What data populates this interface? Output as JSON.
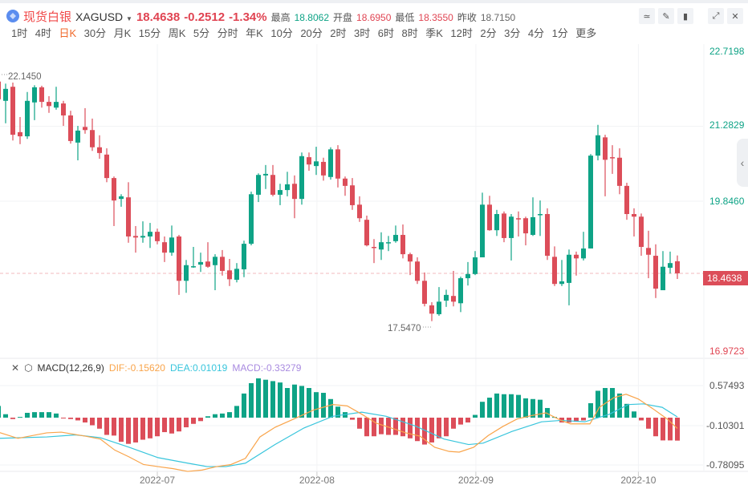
{
  "header": {
    "name": "现货白银",
    "symbol": "XAGUSD",
    "price": "18.4638",
    "change": "-0.2512",
    "change_pct": "-1.34%",
    "high_label": "最高",
    "high": "18.8062",
    "open_label": "开盘",
    "open": "18.6950",
    "low_label": "最低",
    "low": "18.3550",
    "prev_label": "昨收",
    "prev": "18.7150"
  },
  "periods": [
    "1时",
    "4时",
    "日K",
    "30分",
    "月K",
    "15分",
    "周K",
    "5分",
    "分时",
    "年K",
    "10分",
    "20分",
    "2时",
    "3时",
    "6时",
    "8时",
    "季K",
    "12时",
    "2分",
    "3分",
    "4分",
    "1分",
    "更多"
  ],
  "active_period": "日K",
  "colors": {
    "up": "#0ea386",
    "down": "#dc4d59",
    "dif": "#f9a44a",
    "dea": "#38c5dc",
    "macd": "#a98be0"
  },
  "price_axis": [
    "22.7198",
    "21.2829",
    "19.8460",
    "16.9723"
  ],
  "current_price_tag": "18.4638",
  "annotations": {
    "high": "22.1450",
    "low": "17.5470"
  },
  "macd": {
    "title": "MACD(12,26,9)",
    "dif": "DIF:-0.15620",
    "dea": "DEA:0.01019",
    "macd": "MACD:-0.33279",
    "axis": [
      "0.57493",
      "-0.10301",
      "-0.78095"
    ]
  },
  "dates": [
    {
      "label": "2022-07",
      "index": 22
    },
    {
      "label": "2022-08",
      "index": 44.1
    },
    {
      "label": "2022-09",
      "index": 66.1
    },
    {
      "label": "2022-10",
      "index": 88.6
    }
  ],
  "chart_data": {
    "type": "candlestick",
    "price_range": [
      16.9723,
      22.7198
    ],
    "ohlc": [
      [
        22.14,
        22.15,
        21.78,
        21.8
      ],
      [
        21.77,
        22.1,
        21.34,
        22.0
      ],
      [
        22.04,
        22.12,
        21.01,
        21.12
      ],
      [
        21.17,
        21.46,
        20.94,
        21.09
      ],
      [
        21.09,
        21.94,
        21.04,
        21.77
      ],
      [
        21.74,
        22.07,
        21.4,
        22.03
      ],
      [
        22.03,
        22.06,
        21.64,
        21.75
      ],
      [
        21.75,
        21.86,
        21.54,
        21.67
      ],
      [
        21.64,
        22.04,
        21.6,
        21.75
      ],
      [
        21.72,
        21.77,
        21.29,
        21.49
      ],
      [
        21.49,
        21.58,
        20.95,
        21.0
      ],
      [
        20.97,
        21.29,
        20.63,
        21.2
      ],
      [
        21.27,
        21.63,
        21.14,
        21.21
      ],
      [
        21.21,
        21.43,
        20.81,
        20.88
      ],
      [
        20.88,
        21.11,
        20.66,
        20.77
      ],
      [
        20.74,
        20.86,
        20.21,
        20.29
      ],
      [
        20.29,
        20.32,
        19.37,
        19.86
      ],
      [
        19.89,
        19.98,
        19.74,
        19.94
      ],
      [
        19.92,
        20.21,
        19.05,
        19.17
      ],
      [
        19.18,
        19.37,
        18.86,
        19.15
      ],
      [
        19.15,
        19.46,
        19.05,
        19.18
      ],
      [
        19.17,
        19.43,
        18.95,
        19.26
      ],
      [
        19.26,
        19.32,
        19.02,
        19.08
      ],
      [
        19.06,
        19.17,
        18.68,
        18.86
      ],
      [
        18.86,
        19.38,
        18.8,
        19.15
      ],
      [
        19.17,
        19.2,
        18.05,
        18.32
      ],
      [
        18.32,
        18.72,
        18.09,
        18.62
      ],
      [
        18.59,
        18.97,
        18.57,
        18.6
      ],
      [
        18.63,
        18.86,
        18.49,
        18.68
      ],
      [
        18.69,
        19.06,
        18.57,
        18.59
      ],
      [
        18.62,
        18.83,
        18.14,
        18.78
      ],
      [
        18.78,
        18.91,
        18.42,
        18.51
      ],
      [
        18.52,
        18.74,
        18.22,
        18.35
      ],
      [
        18.34,
        18.66,
        18.29,
        18.55
      ],
      [
        18.54,
        19.09,
        18.39,
        19.03
      ],
      [
        19.03,
        20.03,
        19.0,
        19.98
      ],
      [
        19.97,
        20.38,
        19.83,
        20.35
      ],
      [
        20.34,
        20.54,
        20.08,
        20.37
      ],
      [
        20.35,
        20.54,
        19.94,
        19.97
      ],
      [
        19.97,
        20.18,
        19.77,
        20.06
      ],
      [
        20.06,
        20.41,
        19.94,
        20.17
      ],
      [
        20.18,
        20.34,
        19.52,
        19.89
      ],
      [
        19.89,
        20.78,
        19.78,
        20.71
      ],
      [
        20.69,
        20.78,
        20.43,
        20.55
      ],
      [
        20.52,
        20.89,
        20.35,
        20.61
      ],
      [
        20.6,
        20.68,
        20.24,
        20.34
      ],
      [
        20.31,
        20.88,
        20.26,
        20.84
      ],
      [
        20.84,
        20.92,
        20.11,
        20.28
      ],
      [
        20.28,
        20.32,
        19.95,
        20.14
      ],
      [
        20.15,
        20.29,
        19.68,
        19.77
      ],
      [
        19.78,
        19.94,
        19.45,
        19.52
      ],
      [
        19.49,
        19.57,
        18.98,
        19.0
      ],
      [
        18.97,
        19.12,
        18.66,
        18.95
      ],
      [
        18.92,
        19.25,
        18.72,
        19.06
      ],
      [
        19.05,
        19.18,
        18.89,
        19.06
      ],
      [
        19.08,
        19.38,
        19.05,
        19.2
      ],
      [
        19.2,
        19.4,
        18.75,
        18.83
      ],
      [
        18.83,
        18.86,
        18.43,
        18.69
      ],
      [
        18.69,
        18.77,
        18.26,
        18.32
      ],
      [
        18.32,
        18.48,
        17.83,
        17.88
      ],
      [
        17.85,
        17.91,
        17.547,
        17.69
      ],
      [
        17.68,
        18.2,
        17.65,
        17.92
      ],
      [
        17.94,
        18.15,
        17.82,
        18.05
      ],
      [
        18.03,
        18.51,
        17.83,
        17.92
      ],
      [
        17.89,
        18.4,
        17.72,
        18.37
      ],
      [
        18.37,
        18.68,
        18.23,
        18.45
      ],
      [
        18.45,
        18.89,
        18.43,
        18.77
      ],
      [
        18.77,
        20.01,
        18.77,
        19.78
      ],
      [
        19.78,
        19.95,
        19.28,
        19.29
      ],
      [
        19.29,
        19.68,
        19.18,
        19.6
      ],
      [
        19.61,
        19.65,
        19.06,
        19.14
      ],
      [
        19.14,
        19.6,
        18.71,
        19.55
      ],
      [
        19.52,
        19.65,
        19.17,
        19.51
      ],
      [
        19.52,
        19.55,
        19.0,
        19.23
      ],
      [
        19.2,
        19.92,
        19.18,
        19.54
      ],
      [
        19.59,
        19.86,
        19.18,
        19.6
      ],
      [
        19.6,
        19.71,
        18.72,
        18.8
      ],
      [
        18.78,
        18.98,
        18.22,
        18.26
      ],
      [
        18.26,
        18.72,
        18.22,
        18.31
      ],
      [
        18.28,
        18.92,
        17.85,
        18.82
      ],
      [
        18.82,
        18.88,
        18.42,
        18.75
      ],
      [
        18.75,
        19.26,
        18.71,
        18.94
      ],
      [
        18.94,
        20.75,
        18.94,
        20.72
      ],
      [
        20.72,
        21.31,
        20.63,
        21.11
      ],
      [
        21.07,
        21.12,
        19.94,
        20.64
      ],
      [
        20.69,
        20.92,
        20.37,
        20.68
      ],
      [
        20.68,
        20.86,
        19.98,
        20.14
      ],
      [
        20.14,
        20.2,
        19.49,
        19.6
      ],
      [
        19.6,
        19.71,
        19.17,
        19.55
      ],
      [
        19.55,
        19.61,
        18.8,
        18.97
      ],
      [
        18.95,
        19.28,
        18.37,
        18.82
      ],
      [
        18.8,
        19.02,
        17.99,
        18.17
      ],
      [
        18.14,
        18.89,
        18.14,
        18.59
      ],
      [
        18.57,
        18.88,
        18.46,
        18.66
      ],
      [
        18.695,
        18.806,
        18.355,
        18.4638
      ]
    ],
    "macd_hist": [
      0.17,
      0.05,
      -0.02,
      0.01,
      0.07,
      0.08,
      0.08,
      0.08,
      0.06,
      -0.01,
      -0.02,
      -0.04,
      -0.07,
      -0.11,
      -0.16,
      -0.25,
      -0.26,
      -0.35,
      -0.38,
      -0.36,
      -0.32,
      -0.3,
      -0.27,
      -0.21,
      -0.23,
      -0.2,
      -0.14,
      -0.09,
      -0.05,
      0.02,
      0.05,
      0.06,
      0.08,
      0.17,
      0.35,
      0.5,
      0.57,
      0.55,
      0.53,
      0.51,
      0.43,
      0.48,
      0.46,
      0.43,
      0.37,
      0.36,
      0.27,
      0.16,
      0.08,
      -0.03,
      -0.16,
      -0.27,
      -0.27,
      -0.24,
      -0.25,
      -0.25,
      -0.27,
      -0.3,
      -0.34,
      -0.39,
      -0.36,
      -0.3,
      -0.27,
      -0.16,
      -0.1,
      -0.07,
      0.04,
      0.23,
      0.29,
      0.35,
      0.34,
      0.34,
      0.33,
      0.28,
      0.27,
      0.26,
      0.14,
      0.01,
      -0.07,
      -0.07,
      -0.06,
      -0.04,
      0.21,
      0.39,
      0.43,
      0.43,
      0.35,
      0.2,
      0.09,
      -0.04,
      -0.16,
      -0.27,
      -0.33,
      -0.33,
      -0.333
    ],
    "dif": [
      [
        0,
        -0.21
      ],
      [
        2.7,
        -0.3
      ],
      [
        6.7,
        -0.22
      ],
      [
        8.7,
        -0.21
      ],
      [
        12.1,
        -0.27
      ],
      [
        14.1,
        -0.31
      ],
      [
        16.1,
        -0.47
      ],
      [
        18.1,
        -0.57
      ],
      [
        20.1,
        -0.68
      ],
      [
        22.1,
        -0.71
      ],
      [
        24.2,
        -0.74
      ],
      [
        26.2,
        -0.78
      ],
      [
        28.2,
        -0.76
      ],
      [
        30.2,
        -0.71
      ],
      [
        32.2,
        -0.68
      ],
      [
        34.2,
        -0.59
      ],
      [
        36.2,
        -0.28
      ],
      [
        38.3,
        -0.14
      ],
      [
        40.9,
        -0.02
      ],
      [
        43.6,
        0.11
      ],
      [
        46.3,
        0.19
      ],
      [
        48.3,
        0.17
      ],
      [
        50.3,
        0.05
      ],
      [
        52.3,
        -0.08
      ],
      [
        54.4,
        -0.15
      ],
      [
        56.4,
        -0.22
      ],
      [
        58.4,
        -0.27
      ],
      [
        60.4,
        -0.43
      ],
      [
        62.4,
        -0.49
      ],
      [
        63.8,
        -0.5
      ],
      [
        65.8,
        -0.43
      ],
      [
        67.8,
        -0.26
      ],
      [
        69.8,
        -0.13
      ],
      [
        71.8,
        -0.02
      ],
      [
        73.8,
        0.03
      ],
      [
        75.8,
        0.07
      ],
      [
        77.9,
        -0.04
      ],
      [
        79.2,
        -0.09
      ],
      [
        81.9,
        -0.09
      ],
      [
        83.2,
        0.15
      ],
      [
        85.2,
        0.29
      ],
      [
        86.9,
        0.34
      ],
      [
        88.6,
        0.27
      ],
      [
        90.6,
        0.13
      ],
      [
        92.6,
        -0.02
      ],
      [
        94,
        -0.156
      ]
    ],
    "dea": [
      [
        0,
        -0.3
      ],
      [
        6.7,
        -0.28
      ],
      [
        10.7,
        -0.25
      ],
      [
        14.1,
        -0.29
      ],
      [
        18.1,
        -0.43
      ],
      [
        22.1,
        -0.58
      ],
      [
        26.2,
        -0.66
      ],
      [
        28.9,
        -0.71
      ],
      [
        31.5,
        -0.71
      ],
      [
        34.2,
        -0.66
      ],
      [
        38.3,
        -0.39
      ],
      [
        42.3,
        -0.15
      ],
      [
        46.3,
        0.02
      ],
      [
        50.3,
        0.08
      ],
      [
        53.7,
        0.02
      ],
      [
        57.7,
        -0.12
      ],
      [
        61.7,
        -0.31
      ],
      [
        65.1,
        -0.39
      ],
      [
        67.1,
        -0.37
      ],
      [
        71.1,
        -0.2
      ],
      [
        75.2,
        -0.06
      ],
      [
        77.9,
        -0.04
      ],
      [
        81.2,
        -0.06
      ],
      [
        84.6,
        0.05
      ],
      [
        87.2,
        0.19
      ],
      [
        89.3,
        0.2
      ],
      [
        91.9,
        0.15
      ],
      [
        94,
        0.0102
      ]
    ]
  }
}
